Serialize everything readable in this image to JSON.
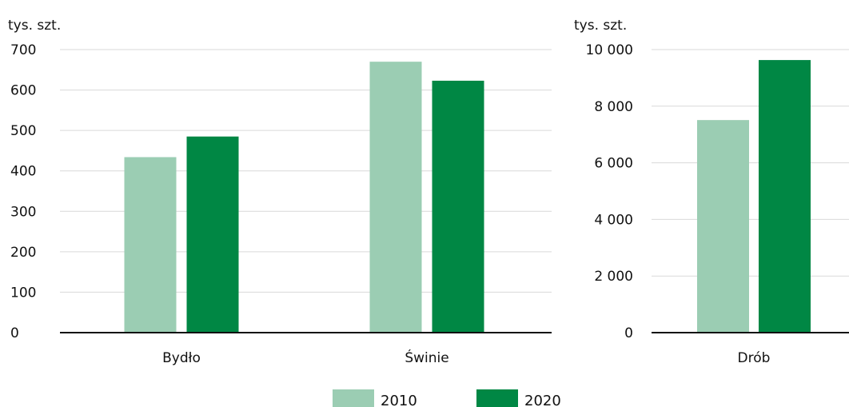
{
  "colors": {
    "s2010": "#9bcdb3",
    "s2020": "#008744",
    "grid": "#d9d9d9",
    "axis": "#111111"
  },
  "legend": {
    "items": [
      {
        "label": "2010",
        "color": "#9bcdb3"
      },
      {
        "label": "2020",
        "color": "#008744"
      }
    ]
  },
  "chart_data": [
    {
      "type": "bar",
      "unit_label": "tys. szt.",
      "categories": [
        "Bydło",
        "Świnie"
      ],
      "series": [
        {
          "name": "2010",
          "values": [
            434,
            670
          ]
        },
        {
          "name": "2020",
          "values": [
            485,
            623
          ]
        }
      ],
      "yticks": [
        {
          "value": 0,
          "label": "0"
        },
        {
          "value": 100,
          "label": "100"
        },
        {
          "value": 200,
          "label": "200"
        },
        {
          "value": 300,
          "label": "300"
        },
        {
          "value": 400,
          "label": "400"
        },
        {
          "value": 500,
          "label": "500"
        },
        {
          "value": 600,
          "label": "600"
        },
        {
          "value": 700,
          "label": "700"
        }
      ],
      "ylim": [
        0,
        700
      ],
      "grid": true,
      "legend": "bottom-center"
    },
    {
      "type": "bar",
      "unit_label": "tys. szt.",
      "categories": [
        "Drób"
      ],
      "series": [
        {
          "name": "2010",
          "values": [
            7510
          ]
        },
        {
          "name": "2020",
          "values": [
            9630
          ]
        }
      ],
      "yticks": [
        {
          "value": 0,
          "label": "0"
        },
        {
          "value": 2000,
          "label": "2 000"
        },
        {
          "value": 4000,
          "label": "4 000"
        },
        {
          "value": 6000,
          "label": "6 000"
        },
        {
          "value": 8000,
          "label": "8 000"
        },
        {
          "value": 10000,
          "label": "10 000"
        }
      ],
      "ylim": [
        0,
        10000
      ],
      "grid": true,
      "legend": "bottom-center"
    }
  ]
}
